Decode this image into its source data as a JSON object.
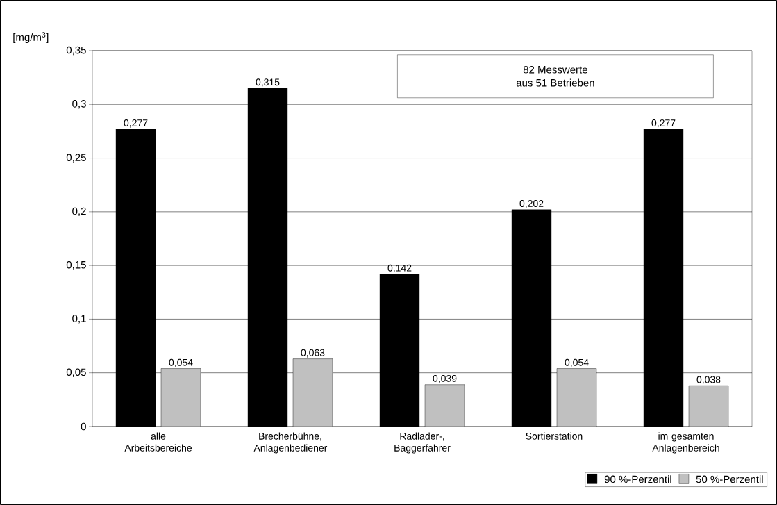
{
  "chart_data": {
    "type": "bar",
    "ylabel": "[mg/m$^{3}$]",
    "categories": [
      "alle Arbeitsbereiche",
      "Brecherbühne, Anlagenbediener",
      "Radlader-, Baggerfahrer",
      "Sortierstation",
      "im gesamten Anlagenbereich"
    ],
    "series": [
      {
        "name": "90 %-Perzentil",
        "color": "#000000",
        "values": [
          0.277,
          0.315,
          0.142,
          0.202,
          0.277
        ],
        "value_labels": [
          "0,277",
          "0,315",
          "0,142",
          "0,202",
          "0,277"
        ]
      },
      {
        "name": "50 %-Perzentil",
        "color": "#c0c0c0",
        "values": [
          0.054,
          0.063,
          0.039,
          0.054,
          0.038
        ],
        "value_labels": [
          "0,054",
          "0,063",
          "0,039",
          "0,054",
          "0,038"
        ]
      }
    ],
    "ylim": [
      0,
      0.35
    ],
    "yticks": [
      0,
      {
        "value": 0.05,
        "label": "0,05"
      },
      {
        "value": 0.1,
        "label": "0,1"
      },
      {
        "value": 0.15,
        "label": "0,15"
      },
      {
        "value": 0.2,
        "label": "0,2"
      },
      {
        "value": 0.25,
        "label": "0,25"
      },
      {
        "value": 0.3,
        "label": "0,3"
      },
      {
        "value": 0.35,
        "label": "0,35"
      }
    ],
    "grid": "y",
    "legend": "bottom right",
    "annotations": [
      "82 Messwerte",
      "aus 51 Betrieben"
    ]
  }
}
